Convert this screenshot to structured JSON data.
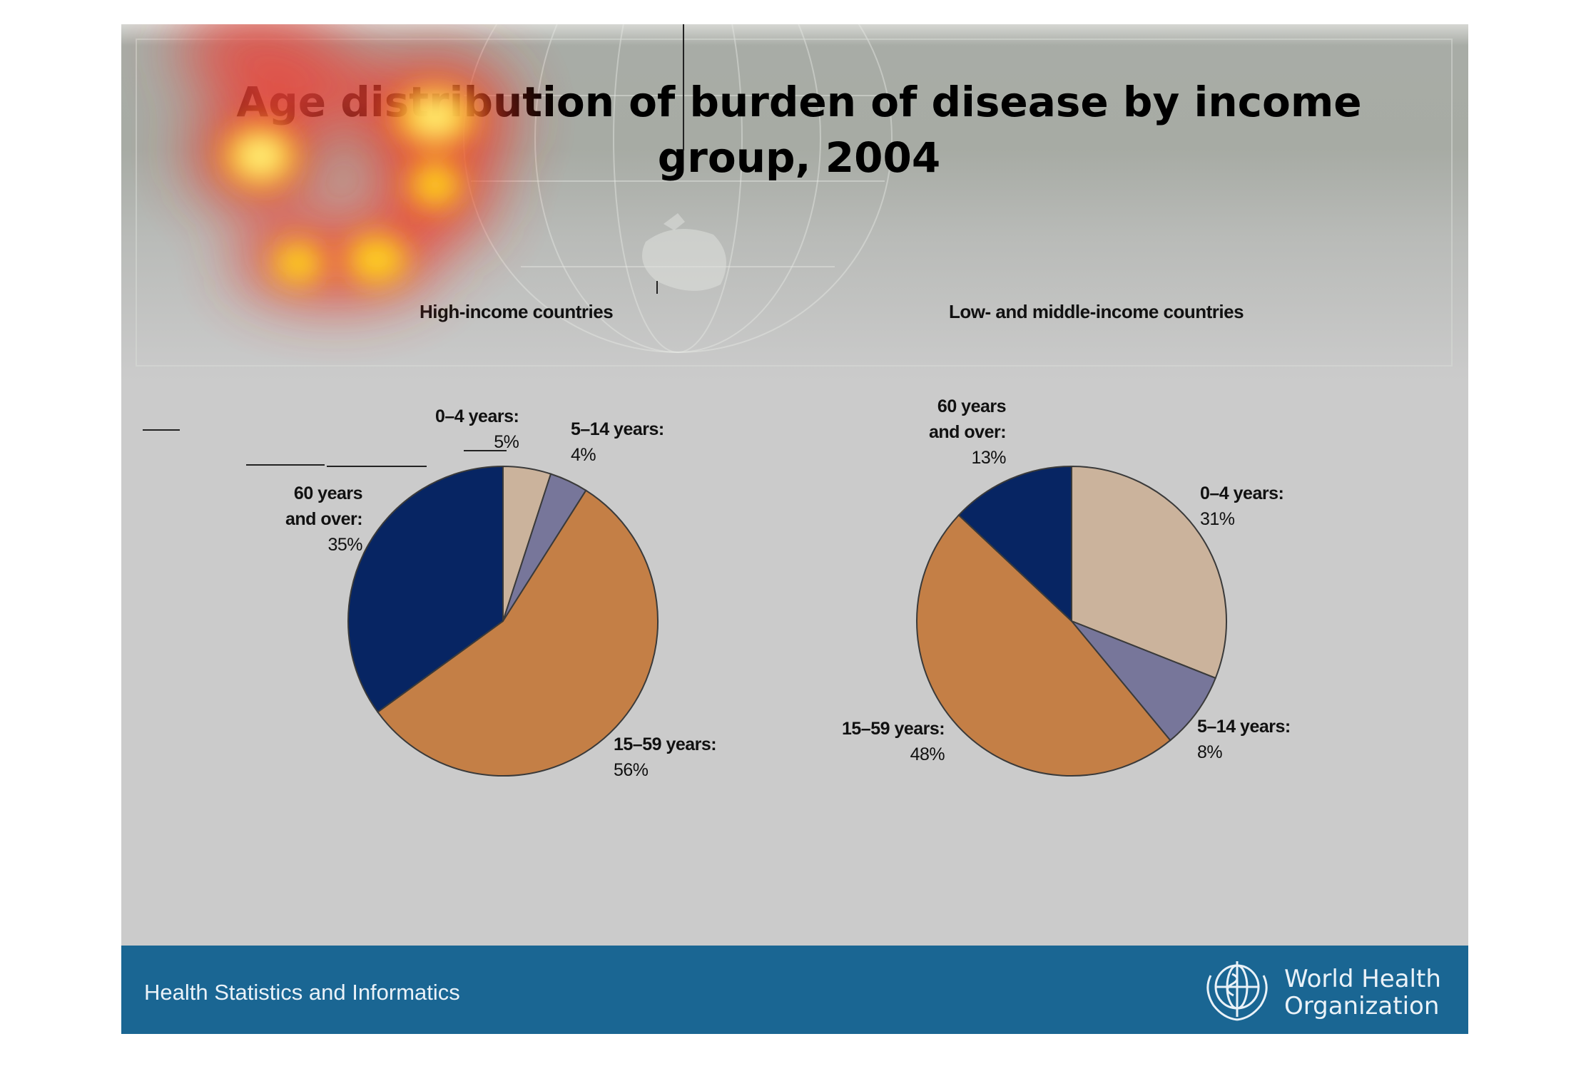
{
  "slide": {
    "title": "Age distribution of burden of disease by income group, 2004"
  },
  "footer": {
    "text": "Health Statistics and Informatics",
    "org_line1": "World Health",
    "org_line2": "Organization",
    "logo_icon": "who-emblem-icon"
  },
  "colors": {
    "age_0_4": "#cbb39c",
    "age_5_14": "#77769a",
    "age_15_59": "#c47f46",
    "age_60_plus": "#072563",
    "footer_bar": "#1a6693",
    "slide_bg": "#cbcbcb"
  },
  "chart_data": [
    {
      "type": "pie",
      "title": "High-income countries",
      "categories": [
        "0–4 years:",
        "5–14 years:",
        "15–59 years:",
        "60 years and over:"
      ],
      "values": [
        5,
        4,
        56,
        35
      ],
      "labels": [
        {
          "name": "0–4 years:",
          "pct": "5%"
        },
        {
          "name": "5–14 years:",
          "pct": "4%"
        },
        {
          "name": "15–59 years:",
          "pct": "56%"
        },
        {
          "name_line1": "60 years",
          "name_line2": "and over:",
          "pct": "35%"
        }
      ]
    },
    {
      "type": "pie",
      "title": "Low- and middle-income countries",
      "categories": [
        "0–4 years:",
        "5–14 years:",
        "15–59 years:",
        "60 years and over:"
      ],
      "values": [
        31,
        8,
        48,
        13
      ],
      "labels": [
        {
          "name": "0–4 years:",
          "pct": "31%"
        },
        {
          "name": "5–14 years:",
          "pct": "8%"
        },
        {
          "name": "15–59 years:",
          "pct": "48%"
        },
        {
          "name_line1": "60 years",
          "name_line2": "and over:",
          "pct": "13%"
        }
      ]
    }
  ]
}
